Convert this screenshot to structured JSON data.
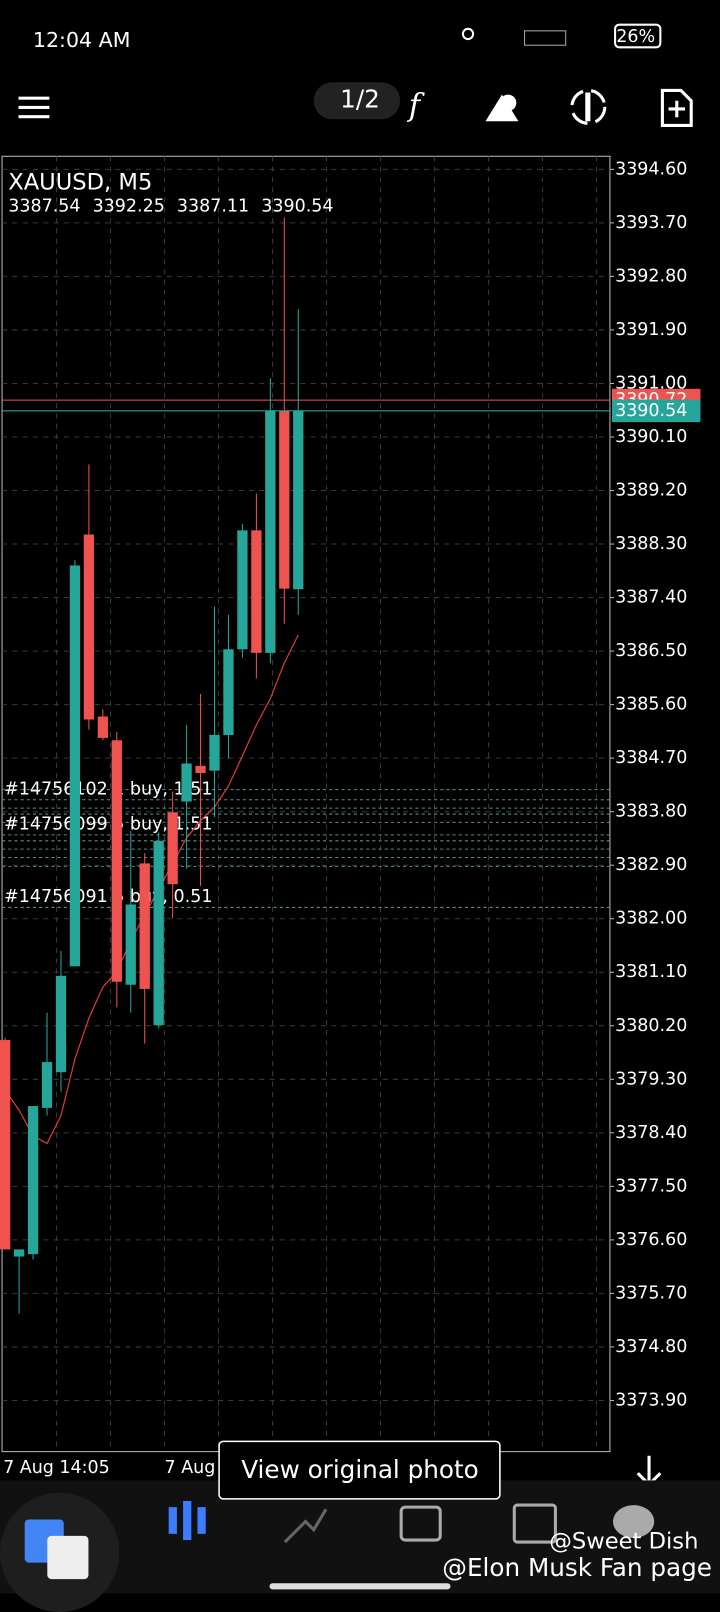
{
  "status_bar": {
    "time": "12:04 AM",
    "battery": "26%"
  },
  "toolbar": {
    "page": "1/2",
    "function_icon": "f"
  },
  "chart_data": {
    "type": "candlestick",
    "title": "XAUUSD, M5",
    "ohlc": [
      3387.54,
      3392.25,
      3387.11,
      3390.54
    ],
    "open": [
      3379.96,
      3376.32,
      3376.36,
      3378.82,
      3379.42,
      3381.2,
      3388.46,
      3385.4,
      3385.0,
      3380.89,
      3382.93,
      3380.21,
      3383.79,
      3383.97,
      3384.57,
      3384.49,
      3385.09,
      3386.53,
      3388.53,
      3386.47,
      3390.54,
      3387.54
    ],
    "high": [
      3380.0,
      3376.44,
      3378.85,
      3380.42,
      3381.46,
      3388.03,
      3389.64,
      3385.52,
      3385.14,
      3383.48,
      3383.1,
      3383.45,
      3384.14,
      3385.26,
      3385.78,
      3387.25,
      3387.11,
      3388.64,
      3389.15,
      3391.09,
      3393.79,
      3392.25
    ],
    "low": [
      3376.44,
      3375.36,
      3376.27,
      3378.69,
      3379.09,
      3381.2,
      3385.18,
      3385.0,
      3380.51,
      3380.42,
      3379.9,
      3380.16,
      3382.01,
      3382.84,
      3382.55,
      3383.71,
      3384.69,
      3386.39,
      3386.04,
      3386.3,
      3386.96,
      3387.11
    ],
    "close": [
      3376.44,
      3376.44,
      3378.85,
      3379.59,
      3381.04,
      3387.94,
      3385.35,
      3385.04,
      3380.94,
      3382.24,
      3380.82,
      3383.31,
      3382.58,
      3384.61,
      3384.45,
      3385.09,
      3386.53,
      3388.53,
      3386.47,
      3390.54,
      3387.55,
      3390.54
    ],
    "ma": [
      3379.12,
      3378.78,
      3378.35,
      3378.22,
      3378.69,
      3379.64,
      3380.33,
      3380.85,
      3381.11,
      3381.63,
      3382.06,
      3382.5,
      3382.93,
      3383.36,
      3383.65,
      3383.88,
      3384.23,
      3384.74,
      3385.26,
      3385.7,
      3386.3,
      3386.77
    ],
    "bull_color": "#26a69a",
    "bear_color": "#ef5350",
    "ma_color": "#d83b3b",
    "price_lines": [
      {
        "value": 3390.72,
        "color": "#ef5350"
      },
      {
        "value": 3390.54,
        "color": "#26a69a"
      }
    ],
    "orders": [
      {
        "label": "#14756102 1 buy, 1.51",
        "value": 3384.0
      },
      {
        "label": "#14756099 5 buy, 1.51",
        "value": 3383.41
      },
      {
        "label": "#14756091 5 buy, 0.51",
        "value": 3382.19
      }
    ],
    "order_levels": [
      3384.17,
      3383.86,
      3383.76,
      3383.62,
      3383.31,
      3383.17,
      3383.03,
      3382.88
    ],
    "x_labels": [
      "7 Aug 14:05",
      "7 Aug"
    ],
    "ylim": [
      3373.04,
      3394.82
    ],
    "yticks": [
      {
        "value": 3394.6,
        "label": "3394.60"
      },
      {
        "value": 3393.7,
        "label": "3393.70"
      },
      {
        "value": 3392.8,
        "label": "3392.80"
      },
      {
        "value": 3391.9,
        "label": "3391.90"
      },
      {
        "value": 3391,
        "label": "3391.00"
      },
      {
        "value": 3390.1,
        "label": "3390.10"
      },
      {
        "value": 3389.2,
        "label": "3389.20"
      },
      {
        "value": 3388.3,
        "label": "3388.30"
      },
      {
        "value": 3387.4,
        "label": "3387.40"
      },
      {
        "value": 3386.5,
        "label": "3386.50"
      },
      {
        "value": 3385.6,
        "label": "3385.60"
      },
      {
        "value": 3384.7,
        "label": "3384.70"
      },
      {
        "value": 3383.8,
        "label": "3383.80"
      },
      {
        "value": 3382.9,
        "label": "3382.90"
      },
      {
        "value": 3382,
        "label": "3382.00"
      },
      {
        "value": 3381.1,
        "label": "3381.10"
      },
      {
        "value": 3380.2,
        "label": "3380.20"
      },
      {
        "value": 3379.3,
        "label": "3379.30"
      },
      {
        "value": 3378.4,
        "label": "3378.40"
      },
      {
        "value": 3377.5,
        "label": "3377.50"
      },
      {
        "value": 3376.6,
        "label": "3376.60"
      },
      {
        "value": 3375.7,
        "label": "3375.70"
      },
      {
        "value": 3374.8,
        "label": "3374.80"
      },
      {
        "value": 3373.9,
        "label": "3373.90"
      }
    ],
    "grid": true
  },
  "overlay": {
    "button": "View original photo",
    "watermarks": [
      "@Elon Musk Fan page",
      "@Sweet Dish"
    ]
  }
}
